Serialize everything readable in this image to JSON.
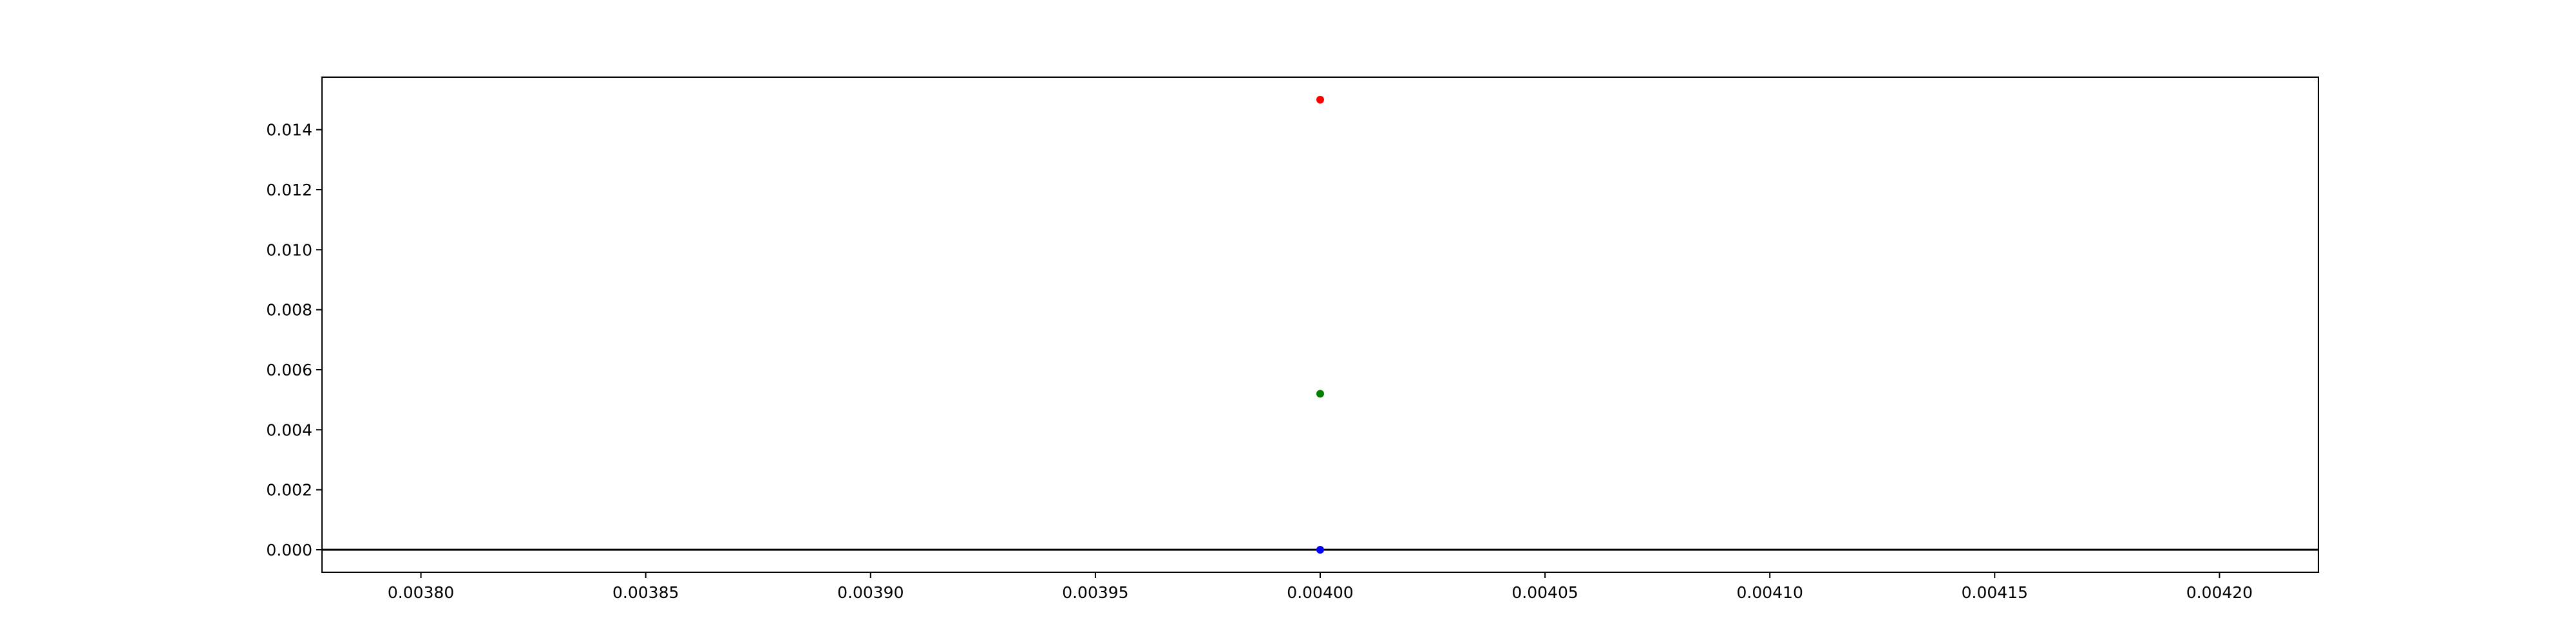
{
  "chart_data": {
    "type": "scatter",
    "title": "",
    "xlabel": "",
    "ylabel": "",
    "xlim": [
      0.003778,
      0.004222
    ],
    "ylim": [
      -0.00075,
      0.01575
    ],
    "grid": false,
    "legend": "none",
    "x_ticks": [
      {
        "value": 0.0038,
        "label": "0.00380"
      },
      {
        "value": 0.00385,
        "label": "0.00385"
      },
      {
        "value": 0.0039,
        "label": "0.00390"
      },
      {
        "value": 0.00395,
        "label": "0.00395"
      },
      {
        "value": 0.004,
        "label": "0.00400"
      },
      {
        "value": 0.00405,
        "label": "0.00405"
      },
      {
        "value": 0.0041,
        "label": "0.00410"
      },
      {
        "value": 0.00415,
        "label": "0.00415"
      },
      {
        "value": 0.0042,
        "label": "0.00420"
      }
    ],
    "y_ticks": [
      {
        "value": 0.0,
        "label": "0.000"
      },
      {
        "value": 0.002,
        "label": "0.002"
      },
      {
        "value": 0.004,
        "label": "0.004"
      },
      {
        "value": 0.006,
        "label": "0.006"
      },
      {
        "value": 0.008,
        "label": "0.008"
      },
      {
        "value": 0.01,
        "label": "0.010"
      },
      {
        "value": 0.012,
        "label": "0.012"
      },
      {
        "value": 0.014,
        "label": "0.014"
      }
    ],
    "reference_lines": [
      {
        "orientation": "horizontal",
        "value": 0.0,
        "color": "#000000"
      }
    ],
    "series": [
      {
        "x": [
          0.004
        ],
        "y": [
          0.015
        ],
        "color": "#ff0000"
      },
      {
        "x": [
          0.004
        ],
        "y": [
          0.0052
        ],
        "color": "#008000"
      },
      {
        "x": [
          0.004
        ],
        "y": [
          0.0
        ],
        "color": "#0000ff"
      }
    ]
  }
}
